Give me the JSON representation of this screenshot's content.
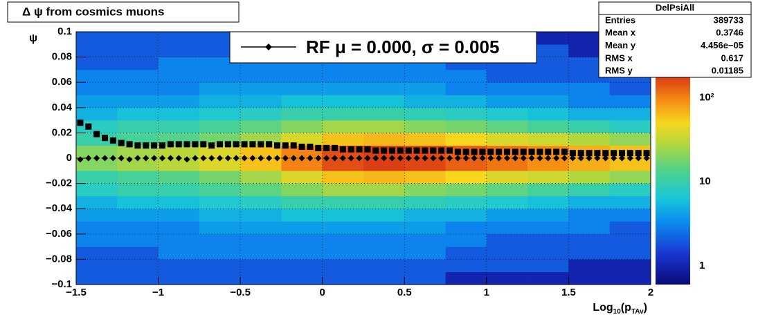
{
  "chart_data": {
    "type": "heatmap",
    "title": "Δ ψ from cosmics muons",
    "ylabel": "ψ",
    "xlabel_parts": [
      "Log",
      "10",
      "(p",
      "TAv",
      ")"
    ],
    "xlim": [
      -1.5,
      2
    ],
    "ylim": [
      -0.1,
      0.1
    ],
    "xticks": [
      {
        "value": -1.5,
        "label": "−1.5"
      },
      {
        "value": -1,
        "label": "−1"
      },
      {
        "value": -0.5,
        "label": "−0.5"
      },
      0,
      0.5,
      1,
      1.5,
      2
    ],
    "yticks": [
      {
        "value": -0.1,
        "label": "−0.1"
      },
      {
        "value": -0.08,
        "label": "−0.08"
      },
      {
        "value": -0.06,
        "label": "−0.06"
      },
      {
        "value": -0.04,
        "label": "−0.04"
      },
      {
        "value": -0.02,
        "label": "−0.02"
      },
      0,
      0.02,
      0.04,
      0.06,
      0.08,
      0.1
    ],
    "grid": true,
    "zlim": [
      0.6,
      174
    ],
    "zlog": true,
    "zticks": [
      1,
      10,
      {
        "value": 100,
        "label": "10²"
      }
    ],
    "heatmap": {
      "xbins": [
        -1.5,
        -1.25,
        -1,
        -0.75,
        -0.5,
        -0.25,
        0,
        0.25,
        0.5,
        0.75,
        1,
        1.25,
        1.5,
        1.75,
        2
      ],
      "ybins": [
        -0.1,
        -0.09,
        -0.08,
        -0.07,
        -0.06,
        -0.05,
        -0.04,
        -0.03,
        -0.02,
        -0.01,
        0,
        0.01,
        0.02,
        0.03,
        0.04,
        0.05,
        0.06,
        0.07,
        0.08,
        0.09,
        0.1
      ],
      "z": [
        [
          2,
          2,
          2,
          2,
          2,
          2,
          2,
          2,
          2,
          1,
          1,
          1,
          1,
          1
        ],
        [
          2,
          2,
          2,
          2,
          2,
          2,
          2,
          2,
          2,
          2,
          2,
          2,
          1,
          1
        ],
        [
          2,
          2,
          3,
          3,
          3,
          3,
          3,
          3,
          3,
          2,
          2,
          2,
          2,
          2
        ],
        [
          3,
          3,
          3,
          3,
          3,
          3,
          3,
          3,
          3,
          3,
          2,
          2,
          2,
          2
        ],
        [
          3,
          3,
          3,
          4,
          4,
          4,
          4,
          4,
          4,
          3,
          3,
          3,
          3,
          2
        ],
        [
          4,
          4,
          4,
          5,
          5,
          6,
          6,
          6,
          5,
          5,
          4,
          4,
          3,
          3
        ],
        [
          5,
          6,
          6,
          7,
          8,
          10,
          10,
          10,
          9,
          8,
          7,
          6,
          5,
          5
        ],
        [
          8,
          10,
          10,
          12,
          15,
          20,
          25,
          25,
          20,
          18,
          15,
          12,
          10,
          8
        ],
        [
          10,
          12,
          14,
          18,
          25,
          40,
          60,
          65,
          60,
          50,
          40,
          35,
          28,
          22
        ],
        [
          20,
          25,
          30,
          40,
          60,
          100,
          150,
          170,
          160,
          130,
          110,
          90,
          70,
          60
        ],
        [
          20,
          25,
          30,
          40,
          60,
          100,
          150,
          170,
          160,
          130,
          110,
          90,
          70,
          60
        ],
        [
          10,
          12,
          14,
          18,
          25,
          40,
          60,
          65,
          60,
          50,
          40,
          35,
          28,
          22
        ],
        [
          8,
          10,
          10,
          12,
          15,
          20,
          25,
          25,
          20,
          18,
          15,
          12,
          10,
          8
        ],
        [
          5,
          6,
          6,
          7,
          8,
          10,
          10,
          10,
          9,
          8,
          7,
          6,
          5,
          5
        ],
        [
          4,
          4,
          4,
          5,
          5,
          6,
          6,
          6,
          5,
          5,
          4,
          4,
          3,
          3
        ],
        [
          3,
          3,
          3,
          4,
          4,
          4,
          4,
          4,
          4,
          3,
          3,
          3,
          3,
          2
        ],
        [
          3,
          3,
          3,
          3,
          3,
          3,
          3,
          3,
          3,
          3,
          2,
          2,
          2,
          2
        ],
        [
          2,
          2,
          3,
          3,
          3,
          3,
          3,
          3,
          3,
          2,
          2,
          2,
          2,
          2
        ],
        [
          2,
          2,
          2,
          2,
          2,
          2,
          2,
          2,
          2,
          2,
          2,
          2,
          1,
          1
        ],
        [
          2,
          2,
          2,
          2,
          2,
          2,
          2,
          2,
          2,
          1,
          1,
          1,
          1,
          1
        ]
      ]
    },
    "x": [
      -1.475,
      -1.425,
      -1.375,
      -1.325,
      -1.275,
      -1.225,
      -1.175,
      -1.125,
      -1.075,
      -1.025,
      -0.975,
      -0.925,
      -0.875,
      -0.825,
      -0.775,
      -0.725,
      -0.675,
      -0.625,
      -0.575,
      -0.525,
      -0.475,
      -0.425,
      -0.375,
      -0.325,
      -0.275,
      -0.225,
      -0.175,
      -0.125,
      -0.075,
      -0.025,
      0.025,
      0.075,
      0.125,
      0.175,
      0.225,
      0.275,
      0.325,
      0.375,
      0.425,
      0.475,
      0.525,
      0.575,
      0.625,
      0.675,
      0.725,
      0.775,
      0.825,
      0.875,
      0.925,
      0.975,
      1.025,
      1.075,
      1.125,
      1.175,
      1.225,
      1.275,
      1.325,
      1.375,
      1.425,
      1.475,
      1.525,
      1.575,
      1.625,
      1.675,
      1.725,
      1.775,
      1.825,
      1.875,
      1.925,
      1.975
    ],
    "series": [
      {
        "marker": "square",
        "color": "#000000",
        "values": [
          0.028,
          0.025,
          0.019,
          0.016,
          0.014,
          0.012,
          0.011,
          0.01,
          0.01,
          0.01,
          0.01,
          0.011,
          0.011,
          0.011,
          0.011,
          0.011,
          0.01,
          0.011,
          0.011,
          0.011,
          0.011,
          0.011,
          0.011,
          0.011,
          0.01,
          0.01,
          0.01,
          0.009,
          0.009,
          0.008,
          0.008,
          0.008,
          0.007,
          0.007,
          0.007,
          0.007,
          0.006,
          0.006,
          0.006,
          0.006,
          0.006,
          0.006,
          0.006,
          0.006,
          0.006,
          0.006,
          0.005,
          0.005,
          0.005,
          0.005,
          0.005,
          0.005,
          0.005,
          0.005,
          0.005,
          0.005,
          0.005,
          0.005,
          0.005,
          0.005,
          0.004,
          0.004,
          0.004,
          0.004,
          0.004,
          0.004,
          0.004,
          0.004,
          0.004,
          0.004
        ]
      },
      {
        "name": "RF μ =  0.000, σ =   0.005",
        "marker": "diamond",
        "color": "#000000",
        "values": [
          -0.001,
          0,
          0,
          0,
          0,
          0,
          -0.001,
          0,
          0,
          0,
          0,
          0,
          0,
          -0.001,
          0,
          0,
          0,
          0,
          0,
          0,
          0,
          0,
          0,
          0,
          0,
          0,
          0,
          0,
          0,
          0,
          0,
          0,
          0,
          0,
          0,
          0,
          0,
          0,
          0,
          0,
          0,
          0,
          0,
          0,
          0,
          0,
          0,
          0,
          0,
          0,
          0,
          0,
          0,
          0,
          0,
          0,
          0,
          0,
          0,
          0,
          0,
          0,
          0,
          0,
          0,
          0,
          0,
          0,
          0,
          0
        ]
      }
    ],
    "stats": {
      "title": "DelPsiAll",
      "rows": [
        [
          "Entries",
          389733
        ],
        [
          "Mean x",
          0.3746
        ],
        [
          "Mean y",
          "4.456e−05"
        ],
        [
          "RMS x",
          0.617
        ],
        [
          "RMS y",
          0.01185
        ]
      ]
    }
  }
}
